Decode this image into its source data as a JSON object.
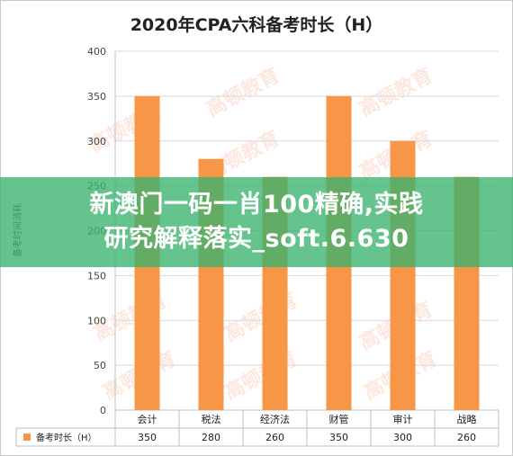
{
  "chart_data": {
    "type": "bar",
    "title": "2020年CPA六科备考时长（H）",
    "ylabel": "备考时间消耗",
    "categories": [
      "会计",
      "税法",
      "经济法",
      "财管",
      "审计",
      "战略"
    ],
    "series": [
      {
        "name": "备考时长（H）",
        "values": [
          350,
          280,
          260,
          350,
          300,
          260
        ]
      }
    ],
    "ylim": [
      0,
      400
    ],
    "yticks": [
      0,
      50,
      100,
      150,
      200,
      250,
      300,
      350,
      400
    ],
    "grid": true,
    "legend": "data table below plot",
    "bar_color": "#f79646"
  },
  "overlay": {
    "line1": "新澳门一码一肖100精确,实践",
    "line2": "研究解释落实_soft.6.630"
  },
  "watermark": {
    "text": "高顿教育"
  },
  "colors": {
    "bar": "#f79646",
    "banner": "#3ab26e",
    "grid": "#d9d9d9"
  }
}
